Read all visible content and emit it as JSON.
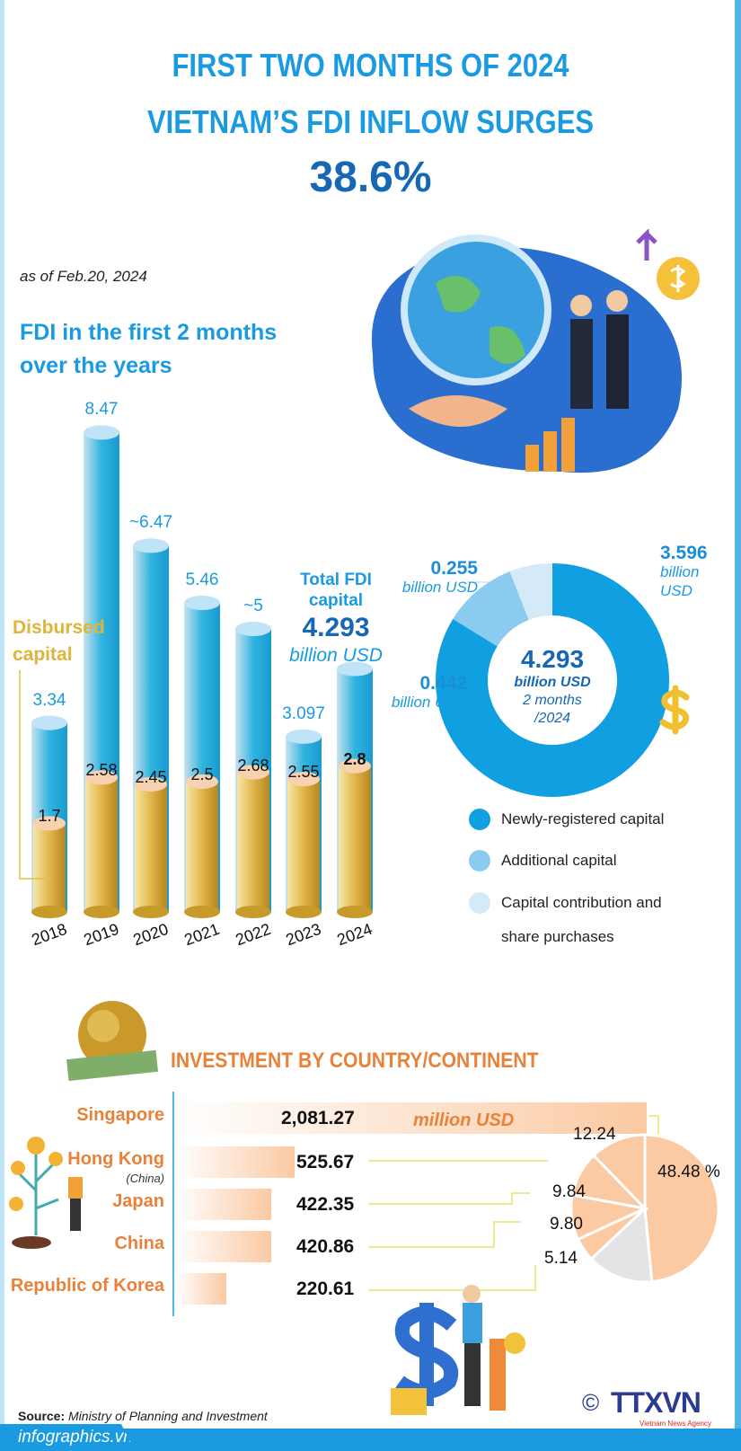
{
  "header": {
    "line1": "FIRST TWO MONTHS OF 2024",
    "line2": "VIETNAM’S FDI INFLOW SURGES",
    "line3": "38.6%",
    "as_of": "as of Feb.20, 2024",
    "subtitle_1": "FDI in the first 2 months",
    "subtitle_2": "over the years"
  },
  "chart_data": [
    {
      "type": "bar",
      "categories": [
        "2018",
        "2019",
        "2020",
        "2021",
        "2022",
        "2023",
        "2024"
      ],
      "series": [
        {
          "name": "Total FDI capital",
          "values": [
            3.34,
            8.47,
            6.47,
            5.46,
            5,
            3.097,
            4.293
          ],
          "labels": [
            "3.34",
            "8.47",
            "~6.47",
            "5.46",
            "~5",
            "3.097",
            ""
          ]
        },
        {
          "name": "Disbursed capital",
          "values": [
            1.7,
            2.58,
            2.45,
            2.5,
            2.68,
            2.55,
            2.8
          ],
          "labels": [
            "1.7",
            "2.58",
            "2.45",
            "2.5",
            "2.68",
            "2.55",
            "2.8"
          ]
        }
      ],
      "colors": {
        "total": "#2fb4e0",
        "disbursed": "#e2b64a"
      },
      "disbursed_label_1": "Disbursed",
      "disbursed_label_2": "capital",
      "total_label_1": "Total FDI",
      "total_label_2": "capital",
      "total_value": "4.293",
      "total_unit": "billion USD"
    },
    {
      "type": "pie",
      "style": "donut",
      "slices": [
        {
          "name": "Newly-registered capital",
          "value": 3.596,
          "label": "3.596",
          "unit": "billion USD",
          "color": "#109fe0"
        },
        {
          "name": "Additional capital",
          "value": 0.442,
          "label": "0.442",
          "unit": "billion USD",
          "color": "#8ccbf0"
        },
        {
          "name": "Capital contribution and share purchases",
          "value": 0.255,
          "label": "0.255",
          "unit": "billion USD",
          "color": "#d5eaf8"
        }
      ],
      "center_value": "4.293",
      "center_unit": "billion USD",
      "center_period_1": "2 months",
      "center_period_2": "/2024",
      "legend": [
        "Newly-registered capital",
        "Additional capital",
        "Capital contribution and",
        "share purchases"
      ],
      "legend_placement": "bottom"
    },
    {
      "type": "bar",
      "orientation": "horizontal",
      "title": "INVESTMENT BY COUNTRY/CONTINENT",
      "categories": [
        "Singapore",
        "Hong Kong",
        "Japan",
        "China",
        "Republic of Korea"
      ],
      "category_notes": [
        "",
        "(China)",
        "",
        "",
        ""
      ],
      "values": [
        2081.27,
        525.67,
        422.35,
        420.86,
        220.61
      ],
      "value_labels": [
        "2,081.27",
        "525.67",
        "422.35",
        "420.86",
        "220.61"
      ],
      "unit": "million USD",
      "color": "#fbc9a2"
    },
    {
      "type": "pie",
      "slices": [
        {
          "category": "Singapore",
          "value": 48.48,
          "label": "48.48 %"
        },
        {
          "category": "Hong Kong",
          "value": 12.24,
          "label": "12.24"
        },
        {
          "category": "Japan",
          "value": 9.84,
          "label": "9.84"
        },
        {
          "category": "China",
          "value": 9.8,
          "label": "9.80"
        },
        {
          "category": "Republic of Korea",
          "value": 5.14,
          "label": "5.14"
        }
      ],
      "colors": {
        "countries": "#fbc9a2",
        "remainder": "#e4e4e6"
      }
    }
  ],
  "footer": {
    "source_label": "Source:",
    "source_text": "Ministry of Planning and Investment",
    "site": "infographics.vn",
    "copyright": "©",
    "logo": "TTXVN",
    "logo_sub": "Vietnam News Agency"
  }
}
